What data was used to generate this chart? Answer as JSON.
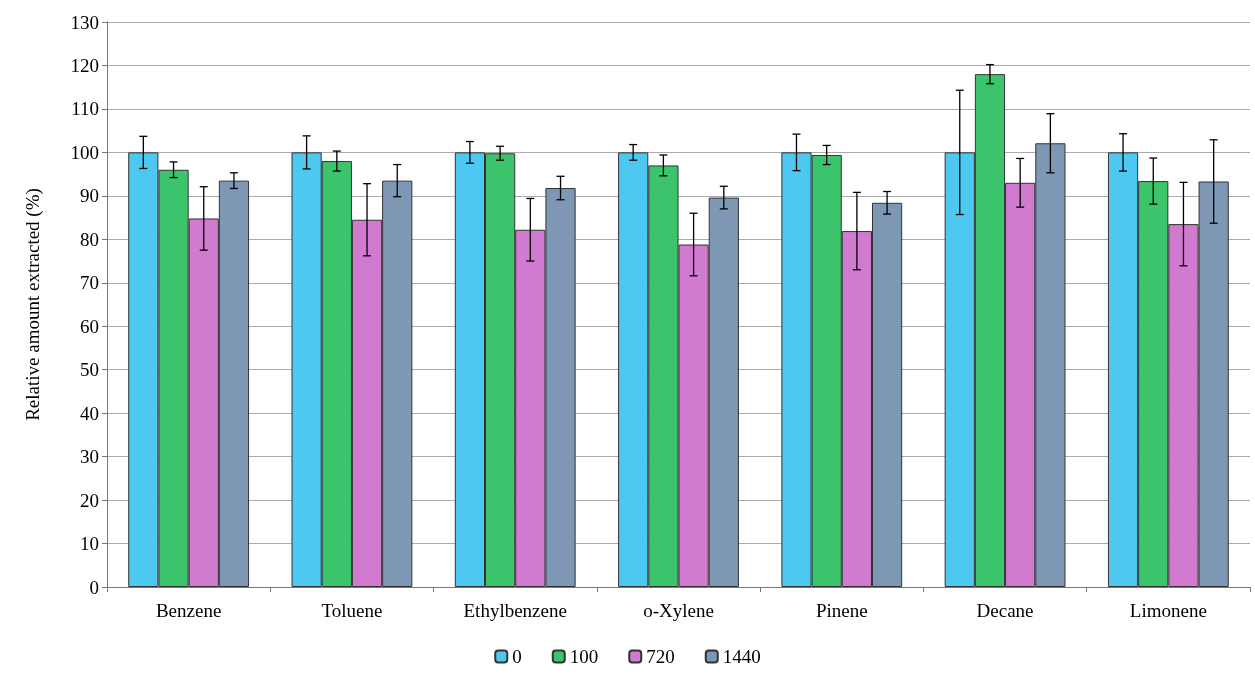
{
  "chart_data": {
    "type": "bar",
    "ylabel": "Relative amount extracted (%)",
    "categories": [
      "Benzene",
      "Toluene",
      "Ethylbenzene",
      "o-Xylene",
      "Pinene",
      "Decane",
      "Limonene"
    ],
    "series": [
      {
        "name": "0",
        "color": "#4dc8f0",
        "values": [
          100,
          100,
          100,
          100,
          100,
          100,
          100
        ],
        "errors": [
          3.7,
          3.8,
          2.5,
          1.8,
          4.2,
          14.3,
          4.3
        ]
      },
      {
        "name": "100",
        "color": "#3cc46c",
        "values": [
          96,
          98,
          99.8,
          97,
          99.4,
          118,
          93.4
        ],
        "errors": [
          1.8,
          2.3,
          1.6,
          2.4,
          2.2,
          2.2,
          5.3
        ]
      },
      {
        "name": "720",
        "color": "#d07ad0",
        "values": [
          84.8,
          84.5,
          82.2,
          78.8,
          81.9,
          93,
          83.5
        ],
        "errors": [
          7.3,
          8.3,
          7.2,
          7.2,
          8.9,
          5.6,
          9.6
        ]
      },
      {
        "name": "1440",
        "color": "#7d97b5",
        "values": [
          93.5,
          93.5,
          91.8,
          89.6,
          88.4,
          102.1,
          93.3
        ],
        "errors": [
          1.8,
          3.7,
          2.7,
          2.6,
          2.6,
          6.8,
          9.6
        ]
      }
    ],
    "ylim": [
      0,
      130
    ],
    "yticks": [
      0,
      10,
      20,
      30,
      40,
      50,
      60,
      70,
      80,
      90,
      100,
      110,
      120,
      130
    ],
    "grid": "y",
    "legend": "bottom"
  }
}
